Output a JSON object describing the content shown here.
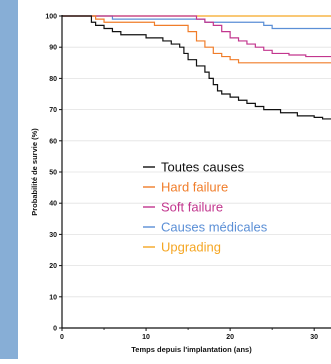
{
  "page": {
    "band_color": "#87aed6"
  },
  "chart_data": {
    "type": "line",
    "step": true,
    "title": "",
    "xlabel": "Temps depuis l'implantation (ans)",
    "ylabel": "Probabilité de survie (%)",
    "xlim": [
      0,
      32
    ],
    "ylim": [
      0,
      100
    ],
    "xticks": [
      0,
      10,
      20,
      30
    ],
    "yticks": [
      0,
      10,
      20,
      30,
      40,
      50,
      60,
      70,
      80,
      90,
      100
    ],
    "legend_position": "center-left",
    "series": [
      {
        "name": "Toutes causes",
        "color": "#111111",
        "points": [
          [
            0,
            100
          ],
          [
            3,
            100
          ],
          [
            3.5,
            98
          ],
          [
            4,
            97
          ],
          [
            5,
            96
          ],
          [
            6,
            95
          ],
          [
            7,
            94
          ],
          [
            9,
            94
          ],
          [
            10,
            93
          ],
          [
            12,
            92
          ],
          [
            13,
            91
          ],
          [
            14,
            90
          ],
          [
            14.5,
            88
          ],
          [
            15,
            86
          ],
          [
            16,
            84
          ],
          [
            17,
            82
          ],
          [
            17.5,
            80
          ],
          [
            18,
            78
          ],
          [
            18.5,
            76
          ],
          [
            19,
            75
          ],
          [
            20,
            74
          ],
          [
            21,
            73
          ],
          [
            22,
            72
          ],
          [
            23,
            71
          ],
          [
            24,
            70
          ],
          [
            26,
            69
          ],
          [
            28,
            68
          ],
          [
            30,
            67.5
          ],
          [
            31,
            67
          ],
          [
            32,
            67
          ]
        ]
      },
      {
        "name": "Hard failure",
        "color": "#f07d2a",
        "points": [
          [
            0,
            100
          ],
          [
            3,
            100
          ],
          [
            4,
            99
          ],
          [
            5,
            98
          ],
          [
            10,
            98
          ],
          [
            11,
            97
          ],
          [
            14,
            97
          ],
          [
            15,
            95
          ],
          [
            16,
            92
          ],
          [
            17,
            90
          ],
          [
            18,
            88
          ],
          [
            19,
            87
          ],
          [
            20,
            86
          ],
          [
            21,
            85
          ],
          [
            23,
            85
          ],
          [
            32,
            85
          ]
        ]
      },
      {
        "name": "Soft failure",
        "color": "#c2368e",
        "points": [
          [
            0,
            100
          ],
          [
            15,
            100
          ],
          [
            16,
            99
          ],
          [
            17,
            98
          ],
          [
            18,
            97
          ],
          [
            19,
            95
          ],
          [
            20,
            93
          ],
          [
            21,
            92
          ],
          [
            22,
            91
          ],
          [
            23,
            90
          ],
          [
            24,
            89
          ],
          [
            25,
            88
          ],
          [
            26,
            88
          ],
          [
            27,
            87.5
          ],
          [
            29,
            87
          ],
          [
            32,
            87
          ]
        ]
      },
      {
        "name": "Causes médicales",
        "color": "#5b8fd6",
        "points": [
          [
            0,
            100
          ],
          [
            5,
            100
          ],
          [
            6,
            99
          ],
          [
            16,
            99
          ],
          [
            17,
            98
          ],
          [
            23,
            98
          ],
          [
            24,
            97
          ],
          [
            25,
            96
          ],
          [
            32,
            96
          ]
        ]
      },
      {
        "name": "Upgrading",
        "color": "#f5a623",
        "points": [
          [
            0,
            100
          ],
          [
            32,
            100
          ]
        ]
      }
    ]
  }
}
